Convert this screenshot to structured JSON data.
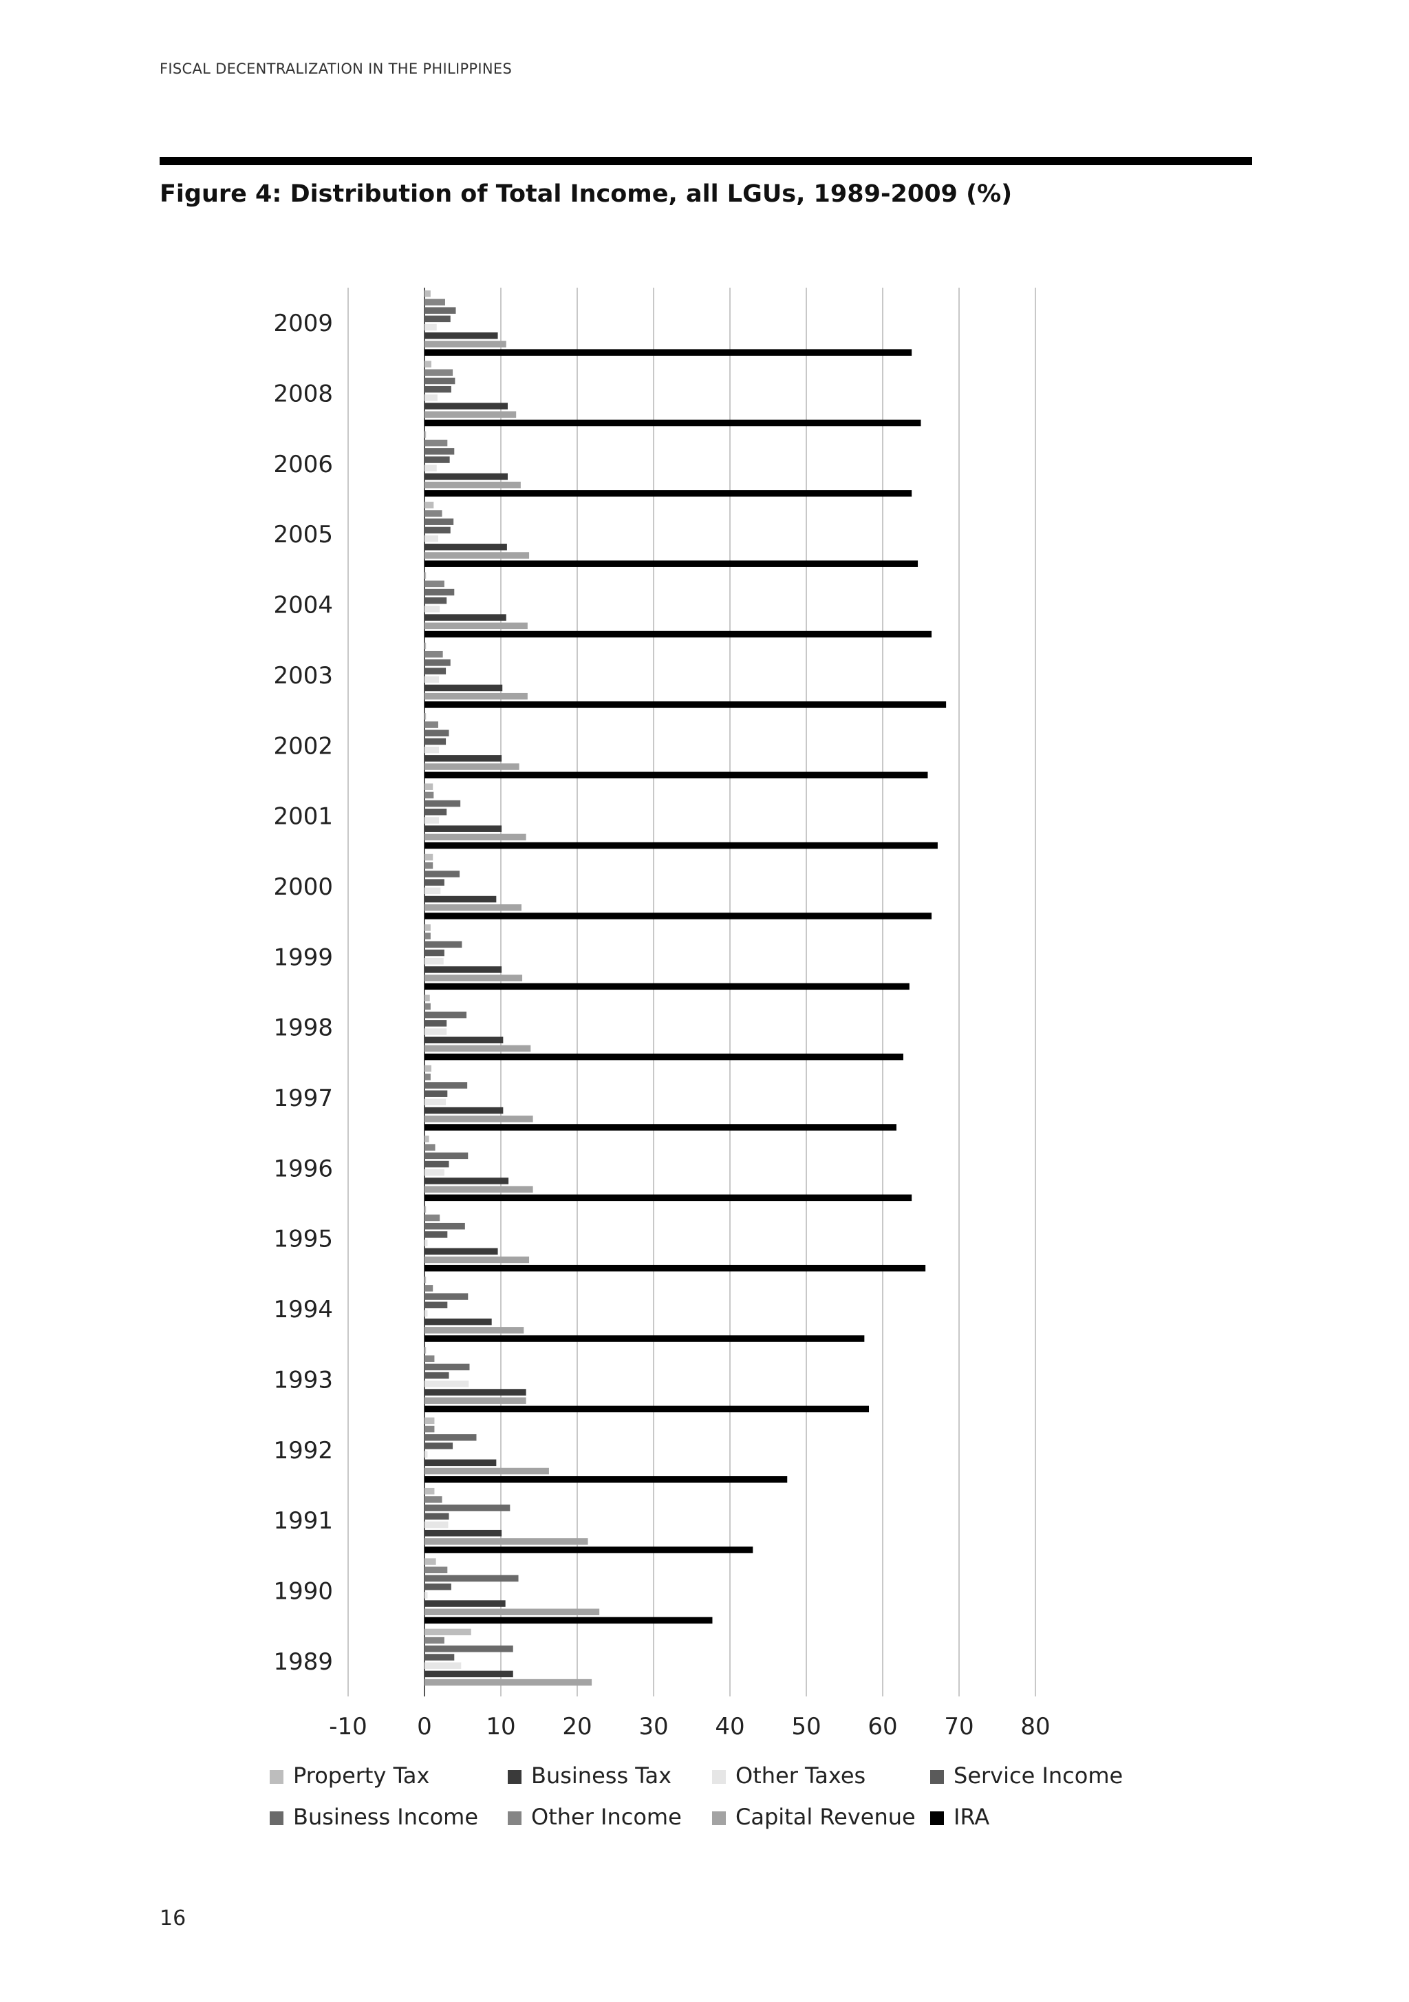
{
  "header": {
    "running_title": "FISCAL DECENTRALIZATION IN THE PHILIPPINES"
  },
  "figure": {
    "title": "Figure 4: Distribution of Total Income, all LGUs, 1989-2009 (%)"
  },
  "page": {
    "number": "16"
  },
  "colors": {
    "Property Tax": "#bdbdbd",
    "Business Tax": "#3a3a3a",
    "Other Taxes": "#e6e6e6",
    "Service Income": "#5a5a5a",
    "Business Income": "#6a6a6a",
    "Other Income": "#858585",
    "Capital Revenue": "#a3a3a3",
    "IRA": "#000000"
  },
  "chart_data": {
    "type": "bar",
    "orientation": "horizontal",
    "categories": [
      "2009",
      "2008",
      "2006",
      "2005",
      "2004",
      "2003",
      "2002",
      "2001",
      "2000",
      "1999",
      "1998",
      "1997",
      "1996",
      "1995",
      "1994",
      "1993",
      "1992",
      "1991",
      "1990",
      "1989"
    ],
    "xlim": [
      -10,
      80
    ],
    "x_ticks": [
      "-10",
      "0",
      "10",
      "20",
      "30",
      "40",
      "50",
      "60",
      "70",
      "80"
    ],
    "grid": "vertical",
    "legend_position": "bottom",
    "series": [
      {
        "name": "Property Tax",
        "values": [
          0.8,
          0.9,
          0.2,
          1.2,
          0.2,
          0.2,
          0.2,
          1.1,
          1.1,
          0.8,
          0.7,
          0.9,
          0.6,
          0.2,
          0.2,
          0.2,
          1.3,
          1.3,
          1.5,
          6.1
        ]
      },
      {
        "name": "Other Income",
        "values": [
          2.7,
          3.7,
          3.0,
          2.3,
          2.6,
          2.4,
          1.8,
          1.2,
          1.1,
          0.8,
          0.8,
          0.8,
          1.4,
          2.0,
          1.1,
          1.3,
          1.3,
          2.3,
          3.0,
          2.6
        ]
      },
      {
        "name": "Business Income",
        "values": [
          4.1,
          4.0,
          3.9,
          3.8,
          3.9,
          3.4,
          3.2,
          4.7,
          4.6,
          4.9,
          5.5,
          5.6,
          5.7,
          5.3,
          5.7,
          5.9,
          6.8,
          11.2,
          12.3,
          11.6
        ]
      },
      {
        "name": "Service Income",
        "values": [
          3.4,
          3.5,
          3.3,
          3.4,
          2.9,
          2.8,
          2.8,
          2.9,
          2.6,
          2.6,
          2.9,
          3.0,
          3.2,
          3.0,
          3.0,
          3.2,
          3.7,
          3.2,
          3.5,
          3.9
        ]
      },
      {
        "name": "Other Taxes",
        "values": [
          1.6,
          1.7,
          1.6,
          1.8,
          2.0,
          1.9,
          1.9,
          1.9,
          2.1,
          2.5,
          2.9,
          2.8,
          2.6,
          0.4,
          0.4,
          5.8,
          0.4,
          3.1,
          0.4,
          4.8
        ]
      },
      {
        "name": "Business Tax",
        "values": [
          9.6,
          10.9,
          10.9,
          10.8,
          10.7,
          10.2,
          10.1,
          10.1,
          9.4,
          10.1,
          10.3,
          10.3,
          11.0,
          9.6,
          8.8,
          13.3,
          9.4,
          10.1,
          10.6,
          11.6
        ]
      },
      {
        "name": "Capital Revenue",
        "values": [
          10.7,
          12.0,
          12.6,
          13.7,
          13.5,
          13.5,
          12.4,
          13.3,
          12.7,
          12.8,
          13.9,
          14.2,
          14.2,
          13.7,
          13.0,
          13.3,
          16.3,
          21.4,
          22.9,
          21.9
        ]
      },
      {
        "name": "IRA",
        "values": [
          63.8,
          65.0,
          63.8,
          64.6,
          66.4,
          68.3,
          65.9,
          67.2,
          66.4,
          63.5,
          62.7,
          61.8,
          63.8,
          65.6,
          57.6,
          58.2,
          47.5,
          43.0,
          37.7,
          null
        ]
      }
    ],
    "legend": [
      "Property Tax",
      "Business Tax",
      "Other Taxes",
      "Service Income",
      "Business Income",
      "Other Income",
      "Capital Revenue",
      "IRA"
    ]
  }
}
